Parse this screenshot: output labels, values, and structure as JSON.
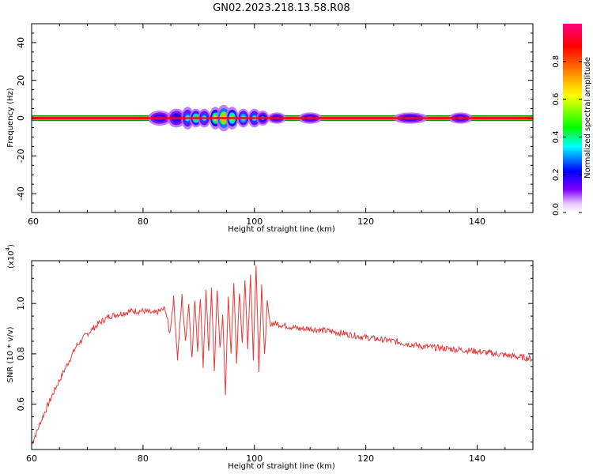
{
  "title": "GN02.2023.218.13.58.R08",
  "chart_data": [
    {
      "type": "heatmap",
      "xlabel": "Height of straight line (km)",
      "ylabel": "Frequency (Hz)",
      "xlim": [
        60,
        150
      ],
      "ylim": [
        -50,
        50
      ],
      "x_ticks": [
        "60",
        "80",
        "100",
        "120",
        "140"
      ],
      "y_ticks": [
        "-40",
        "-20",
        "0",
        "20",
        "40"
      ],
      "colorbar": {
        "label": "Normalized spectral amplitude",
        "range": [
          0,
          1
        ],
        "ticks": [
          "0.0",
          "0.2",
          "0.4",
          "0.6",
          "0.8"
        ]
      },
      "band_center_hz": 0,
      "core_halfwidth_hz": 1.5,
      "blobs": [
        {
          "x": 83,
          "spread_x": 2.0,
          "spread_y": 4,
          "amp": 0.12
        },
        {
          "x": 86,
          "spread_x": 1.5,
          "spread_y": 5,
          "amp": 0.2
        },
        {
          "x": 88,
          "spread_x": 1.0,
          "spread_y": 6,
          "amp": 0.35
        },
        {
          "x": 89.5,
          "spread_x": 1.0,
          "spread_y": 5,
          "amp": 0.45
        },
        {
          "x": 91,
          "spread_x": 1.0,
          "spread_y": 5,
          "amp": 0.35
        },
        {
          "x": 93,
          "spread_x": 1.0,
          "spread_y": 6,
          "amp": 0.55
        },
        {
          "x": 94.5,
          "spread_x": 1.2,
          "spread_y": 7,
          "amp": 0.7
        },
        {
          "x": 96,
          "spread_x": 1.0,
          "spread_y": 6,
          "amp": 0.5
        },
        {
          "x": 98,
          "spread_x": 1.0,
          "spread_y": 5,
          "amp": 0.4
        },
        {
          "x": 100,
          "spread_x": 1.0,
          "spread_y": 5,
          "amp": 0.35
        },
        {
          "x": 101.5,
          "spread_x": 1.0,
          "spread_y": 4,
          "amp": 0.3
        },
        {
          "x": 104,
          "spread_x": 1.5,
          "spread_y": 3,
          "amp": 0.15
        },
        {
          "x": 110,
          "spread_x": 2.0,
          "spread_y": 3,
          "amp": 0.1
        },
        {
          "x": 128,
          "spread_x": 3.0,
          "spread_y": 3,
          "amp": 0.12
        },
        {
          "x": 137,
          "spread_x": 2.0,
          "spread_y": 3,
          "amp": 0.1
        }
      ]
    },
    {
      "type": "line",
      "xlabel": "Height of straight line (km)",
      "ylabel": "SNR (10 * v/v)",
      "scale_label": "(x10",
      "scale_exponent": "4",
      "xlim": [
        60,
        150
      ],
      "ylim": [
        0.42,
        1.17
      ],
      "x_ticks": [
        "60",
        "80",
        "100",
        "120",
        "140"
      ],
      "y_ticks": [
        "0.6",
        "0.8",
        "1.0"
      ],
      "color": "#e8393a",
      "series": [
        {
          "x": [
            60,
            62,
            64,
            66,
            68,
            70,
            72,
            74,
            76,
            78,
            80,
            82,
            84,
            84.8,
            85.5,
            86.2,
            87,
            87.6,
            88.2,
            88.8,
            89.3,
            89.8,
            90.3,
            90.8,
            91.3,
            91.8,
            92.3,
            92.8,
            93.3,
            93.8,
            94.3,
            94.8,
            95.3,
            95.8,
            96.3,
            96.8,
            97.3,
            97.8,
            98.3,
            98.8,
            99.3,
            99.8,
            100.3,
            100.8,
            101.3,
            101.8,
            102.3,
            102.8,
            104,
            106,
            108,
            110,
            115,
            120,
            125,
            130,
            135,
            140,
            145,
            150
          ],
          "y": [
            0.44,
            0.55,
            0.65,
            0.74,
            0.83,
            0.88,
            0.92,
            0.95,
            0.96,
            0.97,
            0.97,
            0.96,
            0.98,
            0.88,
            1.02,
            0.78,
            1.03,
            0.85,
            1.0,
            0.78,
            1.02,
            0.82,
            1.03,
            0.75,
            1.05,
            0.8,
            1.07,
            0.72,
            1.06,
            0.82,
            0.95,
            0.64,
            1.03,
            0.8,
            1.09,
            0.75,
            1.05,
            0.85,
            1.08,
            0.83,
            1.12,
            0.78,
            1.16,
            0.74,
            1.08,
            0.79,
            1.0,
            0.92,
            0.92,
            0.91,
            0.9,
            0.9,
            0.885,
            0.865,
            0.85,
            0.83,
            0.82,
            0.81,
            0.795,
            0.78
          ]
        }
      ]
    }
  ]
}
